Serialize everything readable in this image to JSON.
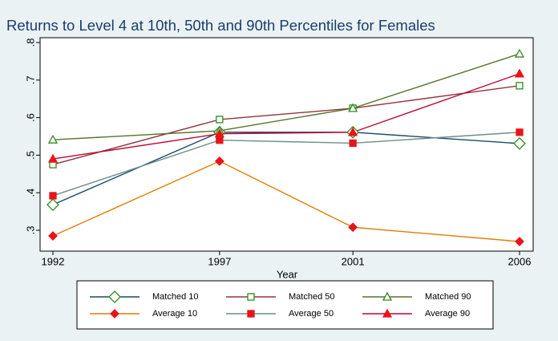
{
  "chart_data": {
    "type": "line",
    "title": "Returns to Level 4 at 10th, 50th and 90th Percentiles for Females",
    "x_label": "Year",
    "x": [
      1992,
      1997,
      2001,
      2006
    ],
    "xlim": [
      1992,
      2006
    ],
    "xticks": [
      1992,
      1997,
      2001,
      2006
    ],
    "ylim": [
      0.3,
      0.8
    ],
    "yticks": [
      {
        "value": 0.3,
        "label": ".3"
      },
      {
        "value": 0.4,
        "label": ".4"
      },
      {
        "value": 0.5,
        "label": ".5"
      },
      {
        "value": 0.6,
        "label": ".6"
      },
      {
        "value": 0.7,
        "label": ".7"
      },
      {
        "value": 0.8,
        "label": ".8"
      }
    ],
    "series": [
      {
        "name": "Matched 10",
        "color": "#1a476f",
        "marker": "diamond",
        "marker_color": "#2e8b1e",
        "marker_fill": false,
        "values": [
          0.368,
          0.561,
          0.561,
          0.531
        ]
      },
      {
        "name": "Matched 50",
        "color": "#90353b",
        "marker": "square",
        "marker_color": "#2e8b1e",
        "marker_fill": false,
        "values": [
          0.475,
          0.595,
          0.625,
          0.685
        ]
      },
      {
        "name": "Matched 90",
        "color": "#55752f",
        "marker": "triangle",
        "marker_color": "#2e8b1e",
        "marker_fill": false,
        "values": [
          0.541,
          0.565,
          0.625,
          0.77
        ]
      },
      {
        "name": "Average 10",
        "color": "#e37e00",
        "marker": "diamond",
        "marker_color": "#e8141a",
        "marker_fill": true,
        "values": [
          0.285,
          0.484,
          0.308,
          0.27
        ]
      },
      {
        "name": "Average 50",
        "color": "#6e8e84",
        "marker": "square",
        "marker_color": "#e8141a",
        "marker_fill": true,
        "values": [
          0.392,
          0.54,
          0.532,
          0.561
        ]
      },
      {
        "name": "Average 90",
        "color": "#c10534",
        "marker": "triangle",
        "marker_color": "#e8141a",
        "marker_fill": true,
        "values": [
          0.49,
          0.557,
          0.561,
          0.717
        ]
      }
    ]
  }
}
